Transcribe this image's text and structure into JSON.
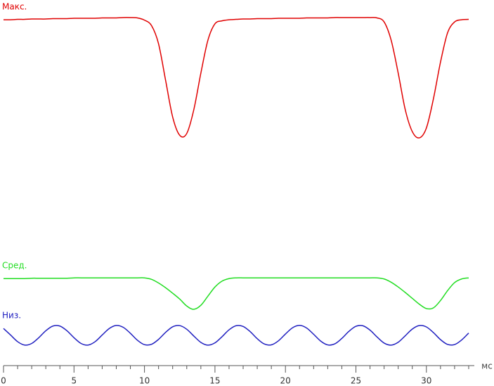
{
  "chart_data": {
    "type": "line",
    "x_label": "мс",
    "x": [
      0,
      0.5,
      1,
      1.5,
      2,
      2.5,
      3,
      3.5,
      4,
      4.5,
      5,
      5.5,
      6,
      6.5,
      7,
      7.5,
      8,
      8.5,
      9,
      9.5,
      10,
      10.5,
      11,
      11.5,
      12,
      12.5,
      13,
      13.5,
      14,
      14.5,
      15,
      15.5,
      16,
      16.5,
      17,
      17.5,
      18,
      18.5,
      19,
      19.5,
      20,
      20.5,
      21,
      21.5,
      22,
      22.5,
      23,
      23.5,
      24,
      24.5,
      25,
      25.5,
      26,
      26.5,
      27,
      27.5,
      28,
      28.5,
      29,
      29.5,
      30,
      30.5,
      31,
      31.5,
      32,
      32.5,
      33
    ],
    "series": [
      {
        "name": "Макс.",
        "color": "#e00000",
        "values": [
          94.6,
          94.6,
          94.7,
          94.7,
          94.8,
          94.8,
          94.8,
          94.9,
          94.9,
          94.9,
          95.0,
          95.0,
          95.0,
          95.0,
          95.1,
          95.1,
          95.1,
          95.2,
          95.2,
          95.1,
          94.5,
          93,
          88,
          78,
          68,
          63,
          63.5,
          70,
          80,
          89,
          93.5,
          94.3,
          94.6,
          94.7,
          94.8,
          94.8,
          94.9,
          94.9,
          94.9,
          95.0,
          95.0,
          95.0,
          95.0,
          95.1,
          95.1,
          95.1,
          95.1,
          95.2,
          95.2,
          95.2,
          95.2,
          95.2,
          95.2,
          95.1,
          94,
          89,
          80,
          70,
          64,
          62.3,
          65,
          73,
          83,
          91,
          94,
          94.6,
          94.7
        ]
      },
      {
        "name": "Сред.",
        "color": "#22dd22",
        "values": [
          23.8,
          23.8,
          23.8,
          23.8,
          23.9,
          23.9,
          23.9,
          23.9,
          23.9,
          23.9,
          24.0,
          24.0,
          24.0,
          24.0,
          24.0,
          24.0,
          24.0,
          24.0,
          24.0,
          24.0,
          24.0,
          23.6,
          22.6,
          21.3,
          19.8,
          18.2,
          16.3,
          15.4,
          16.5,
          19,
          21.5,
          23.1,
          23.8,
          24.0,
          24.0,
          24.0,
          24.0,
          24.0,
          24.0,
          24.0,
          24.0,
          24.0,
          24.0,
          24.0,
          24.0,
          24.0,
          24.0,
          24.0,
          24.0,
          24.0,
          24.0,
          24.0,
          24.0,
          24.0,
          23.7,
          22.8,
          21.5,
          20,
          18.4,
          16.8,
          15.6,
          15.8,
          17.8,
          20.5,
          22.7,
          23.7,
          24.0
        ]
      },
      {
        "name": "Низ.",
        "color": "#2020c0",
        "values": [
          10.15,
          8.37,
          6.55,
          5.62,
          6.06,
          7.63,
          9.54,
          10.82,
          10.82,
          9.54,
          7.63,
          6.06,
          5.62,
          6.55,
          8.37,
          10.15,
          10.99,
          10.46,
          8.84,
          6.94,
          5.73,
          5.83,
          7.18,
          9.1,
          10.62,
          10.95,
          9.94,
          8.09,
          6.35,
          5.6,
          6.22,
          7.9,
          9.79,
          10.91,
          10.71,
          9.29,
          7.36,
          5.92,
          5.68,
          6.77,
          8.64,
          10.34,
          11.0,
          10.29,
          8.57,
          6.71,
          5.66,
          5.95,
          7.44,
          9.36,
          10.75,
          10.89,
          9.71,
          7.82,
          6.17,
          5.61,
          6.39,
          8.17,
          10.0,
          10.96,
          10.58,
          9.03,
          7.11,
          5.8,
          5.76,
          7.01,
          8.91
        ]
      }
    ],
    "xlim": [
      0,
      33.4
    ],
    "xticks": [
      0,
      5,
      10,
      15,
      20,
      25,
      30
    ],
    "xminorticks": [
      1,
      2,
      3,
      4,
      6,
      7,
      8,
      9,
      11,
      12,
      13,
      14,
      16,
      17,
      18,
      19,
      21,
      22,
      23,
      24,
      26,
      27,
      28,
      29,
      31,
      32,
      33
    ],
    "ylim": [
      0,
      100
    ]
  }
}
